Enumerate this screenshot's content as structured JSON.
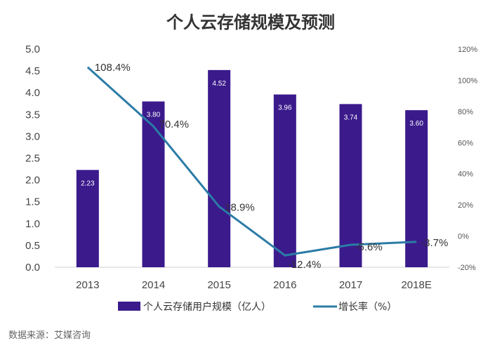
{
  "chart_data": {
    "type": "bar+line",
    "title": "个人云存储规模及预测",
    "categories": [
      "2013",
      "2014",
      "2015",
      "2016",
      "2017",
      "2018E"
    ],
    "series": [
      {
        "name": "个人云存储用户规模（亿人）",
        "type": "bar",
        "axis": "left",
        "color": "#3b1a8c",
        "values": [
          2.23,
          3.8,
          4.52,
          3.96,
          3.74,
          3.6
        ],
        "labels": [
          "2.23",
          "3.80",
          "4.52",
          "3.96",
          "3.74",
          "3.60"
        ]
      },
      {
        "name": "增长率（%）",
        "type": "line",
        "axis": "right",
        "color": "#2b7ca6",
        "values": [
          108.4,
          70.4,
          18.9,
          -12.4,
          -5.6,
          -3.7
        ],
        "labels": [
          "108.4%",
          "70.4%",
          "18.9%",
          "-12.4%",
          "-5.6%",
          "-3.7%"
        ]
      }
    ],
    "left_axis": {
      "range": [
        0,
        5
      ],
      "ticks": [
        "0.0",
        "0.5",
        "1.0",
        "1.5",
        "2.0",
        "2.5",
        "3.0",
        "3.5",
        "4.0",
        "4.5",
        "5.0"
      ]
    },
    "right_axis": {
      "range": [
        -20,
        120
      ],
      "ticks": [
        "-20%",
        "0%",
        "20%",
        "40%",
        "60%",
        "80%",
        "100%",
        "120%"
      ]
    },
    "grid": false,
    "legend_placement": "bottom"
  },
  "source": "数据来源：艾媒咨询"
}
